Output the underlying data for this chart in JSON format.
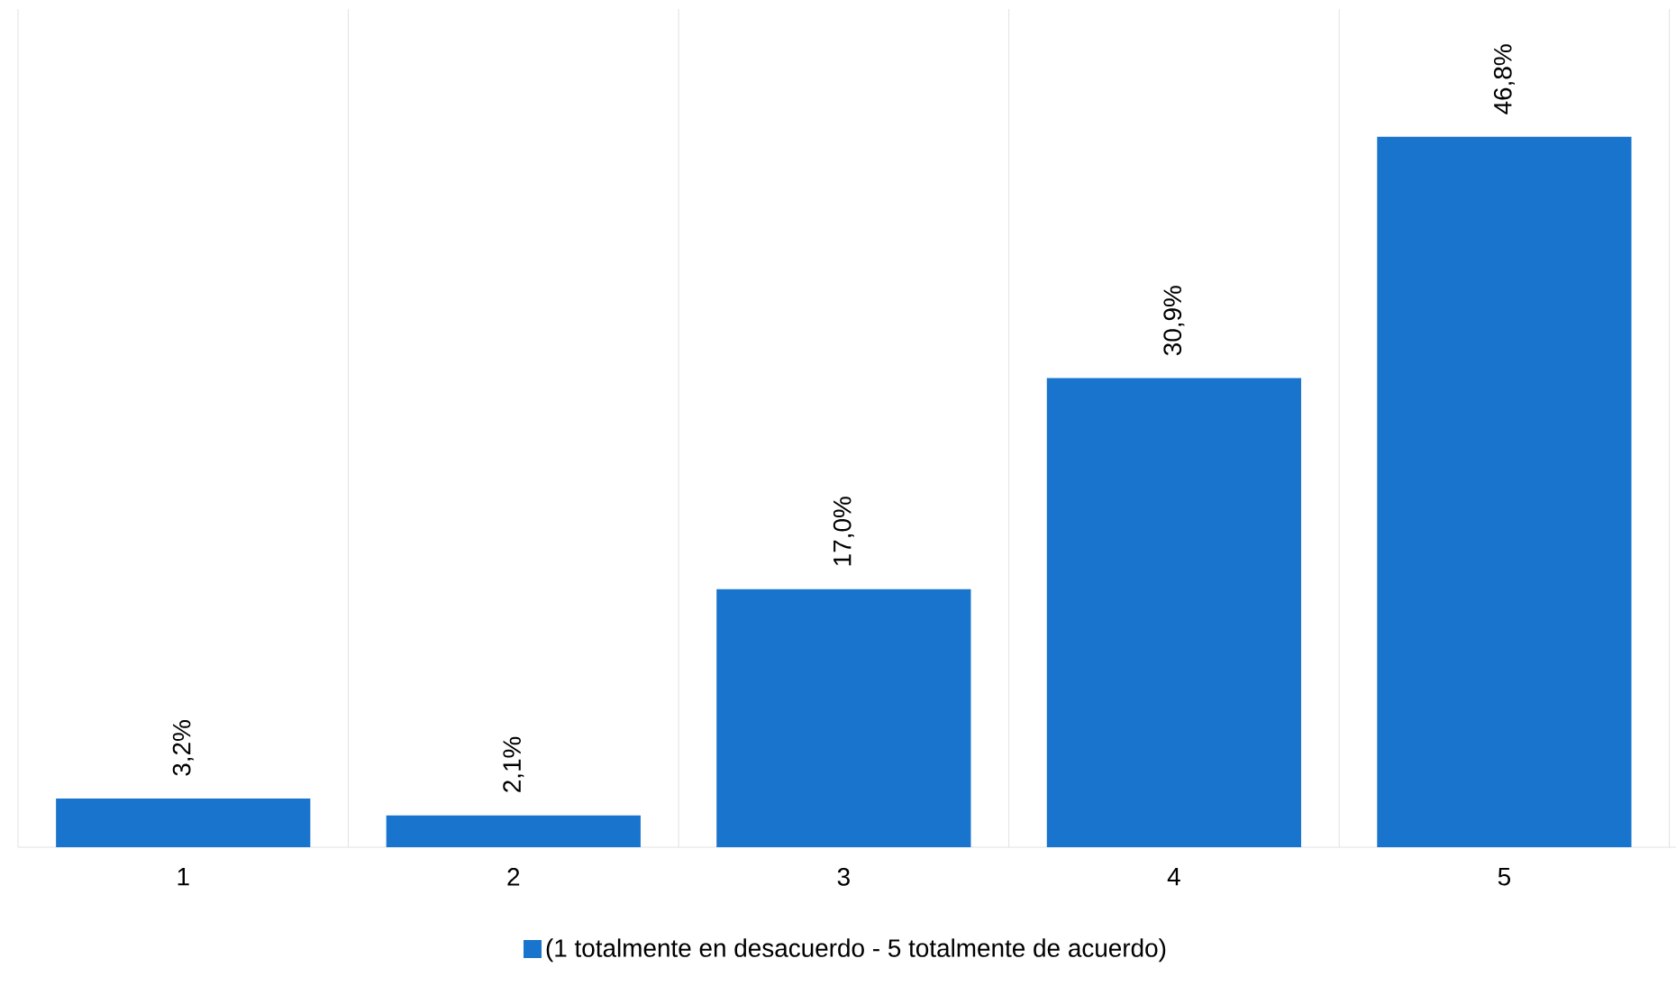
{
  "chart_data": {
    "type": "bar",
    "categories": [
      "1",
      "2",
      "3",
      "4",
      "5"
    ],
    "series": [
      {
        "name": "(1 totalmente en desacuerdo - 5 totalmente de acuerdo)",
        "color": "#1874cd",
        "values": [
          3.2,
          2.1,
          17.0,
          30.9,
          46.8
        ],
        "value_labels": [
          "3,2%",
          "2,1%",
          "17,0%",
          "30,9%",
          "46,8%"
        ]
      }
    ],
    "grid": "x",
    "legend": "bottom"
  }
}
